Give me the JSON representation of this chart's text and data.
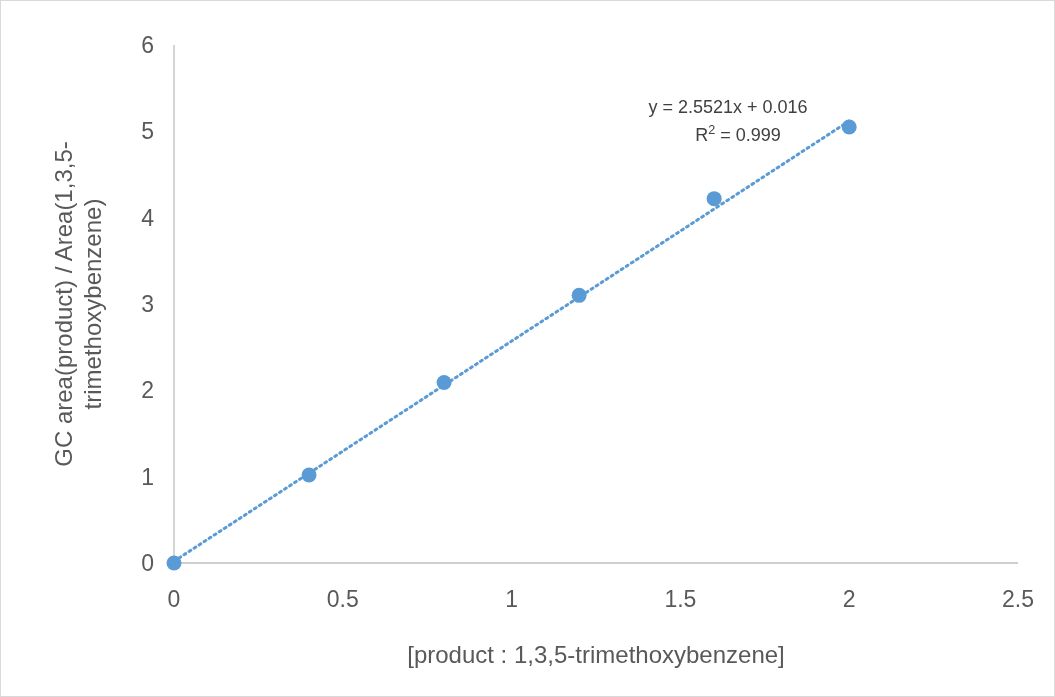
{
  "chart_data": {
    "type": "scatter",
    "xlabel": "[product : 1,3,5-trimethoxybenzene]",
    "ylabel": "GC area(product) / Area(1,3,5-trimethoxybenzene)",
    "xlim": [
      0,
      2.5
    ],
    "xticks": [
      {
        "value": 0,
        "label": "0"
      },
      {
        "value": 0.5,
        "label": "0.5"
      },
      {
        "value": 1,
        "label": "1"
      },
      {
        "value": 1.5,
        "label": "1.5"
      },
      {
        "value": 2,
        "label": "2"
      },
      {
        "value": 2.5,
        "label": "2.5"
      }
    ],
    "ylim": [
      0,
      6
    ],
    "yticks": [
      0,
      1,
      2,
      3,
      4,
      5,
      6
    ],
    "grid": false,
    "marker": "circle",
    "series": [
      {
        "color": "#5b9bd5",
        "x": [
          0,
          0.4,
          0.8,
          1.2,
          1.6,
          2
        ],
        "values": [
          0,
          1.02,
          2.09,
          3.1,
          4.22,
          5.05
        ]
      },
      {
        "type": "line",
        "color": "#5b9bd5",
        "line_style": "dotted",
        "marker": "none",
        "x": [
          0,
          2
        ],
        "values": [
          0.02,
          5.12
        ]
      }
    ],
    "annotations": [
      "y = 2.5521x + 0.016",
      "R$^{2}$ = 0.999"
    ]
  }
}
